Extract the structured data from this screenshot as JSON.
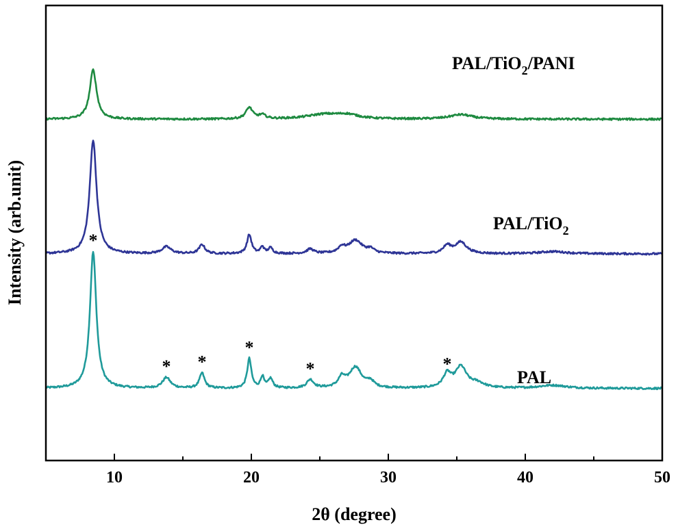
{
  "chart_data": {
    "type": "line",
    "title": "",
    "xlabel": "2θ (degree)",
    "ylabel": "Intensity (arb.unit)",
    "xlim": [
      5,
      50
    ],
    "ylim": [
      0,
      12
    ],
    "x_ticks": [
      10,
      20,
      30,
      40,
      50
    ],
    "x_tick_labels": [
      "10",
      "20",
      "30",
      "40",
      "50"
    ],
    "grid": false,
    "baseline_noise": 0.025,
    "series": [
      {
        "name": "PAL",
        "label_parts": [
          "PAL"
        ],
        "color": "#1f9a9a",
        "baseline": 1.9,
        "peaks": [
          [
            8.45,
            3.6,
            0.28
          ],
          [
            13.8,
            0.28,
            0.35
          ],
          [
            16.4,
            0.4,
            0.22
          ],
          [
            19.85,
            0.78,
            0.18
          ],
          [
            20.8,
            0.3,
            0.15
          ],
          [
            21.4,
            0.25,
            0.2
          ],
          [
            24.3,
            0.22,
            0.3
          ],
          [
            26.6,
            0.25,
            0.3
          ],
          [
            27.6,
            0.55,
            0.55
          ],
          [
            28.7,
            0.15,
            0.3
          ],
          [
            34.3,
            0.35,
            0.35
          ],
          [
            35.3,
            0.55,
            0.5
          ],
          [
            36.5,
            0.12,
            0.6
          ],
          [
            42.0,
            0.08,
            1.2
          ]
        ],
        "markers": [
          8.45,
          13.8,
          16.4,
          19.85,
          24.3,
          34.3
        ]
      },
      {
        "name": "PAL/TiO2",
        "label_parts": [
          "PAL/TiO",
          "2"
        ],
        "color": "#2e3596",
        "baseline": 5.45,
        "peaks": [
          [
            8.45,
            3.0,
            0.3
          ],
          [
            13.8,
            0.18,
            0.4
          ],
          [
            16.4,
            0.24,
            0.25
          ],
          [
            19.85,
            0.5,
            0.2
          ],
          [
            20.8,
            0.18,
            0.15
          ],
          [
            21.4,
            0.15,
            0.2
          ],
          [
            24.3,
            0.12,
            0.3
          ],
          [
            26.6,
            0.15,
            0.3
          ],
          [
            27.6,
            0.35,
            0.6
          ],
          [
            28.7,
            0.1,
            0.3
          ],
          [
            34.3,
            0.2,
            0.35
          ],
          [
            35.3,
            0.3,
            0.5
          ],
          [
            42.0,
            0.06,
            1.2
          ]
        ],
        "markers": []
      },
      {
        "name": "PAL/TiO2/PANI",
        "label_parts": [
          "PAL/TiO",
          "2",
          "/PANI"
        ],
        "color": "#1e8a40",
        "baseline": 9.0,
        "peaks": [
          [
            8.45,
            1.3,
            0.3
          ],
          [
            19.85,
            0.3,
            0.3
          ],
          [
            20.8,
            0.1,
            0.3
          ],
          [
            25.3,
            0.12,
            1.5
          ],
          [
            27.0,
            0.1,
            1.0
          ],
          [
            35.3,
            0.12,
            1.0
          ]
        ],
        "markers": []
      }
    ]
  }
}
